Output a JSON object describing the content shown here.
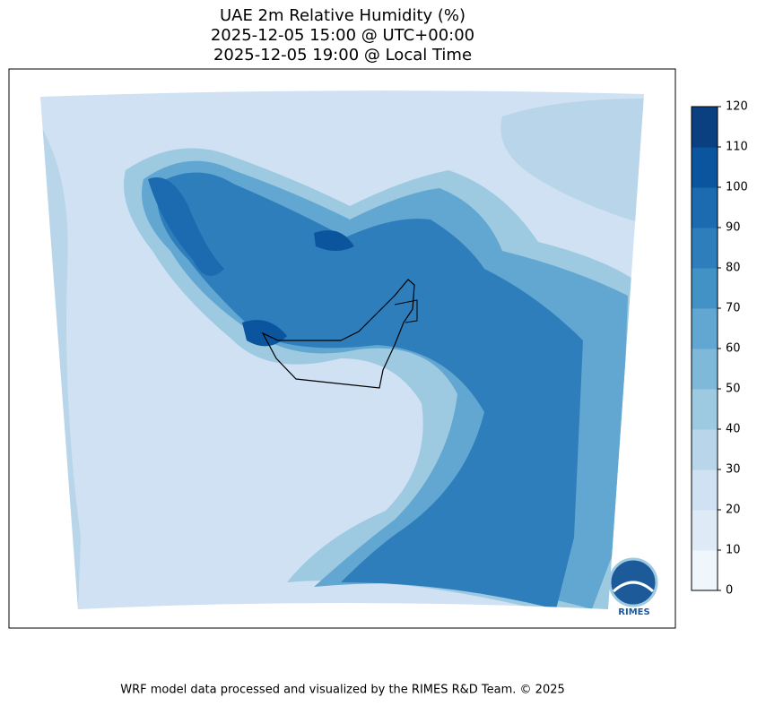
{
  "title": [
    "UAE 2m Relative Humidity (%)",
    "2025-12-05 15:00 @ UTC+00:00",
    "2025-12-05 19:00 @ Local Time"
  ],
  "colorbar": {
    "ticks": [
      0,
      10,
      20,
      30,
      40,
      50,
      60,
      70,
      80,
      90,
      100,
      110,
      120
    ],
    "colors": [
      "#eff6fc",
      "#deebf7",
      "#cfe1f2",
      "#b8d5ea",
      "#9ecae1",
      "#7fb9da",
      "#61a7d2",
      "#4292c6",
      "#2e7ebc",
      "#1c6aaf",
      "#0b559f",
      "#0a3f80"
    ]
  },
  "logo": "RIMES",
  "footer": "WRF model data processed and visualized by the RIMES R&D Team. © 2025"
}
